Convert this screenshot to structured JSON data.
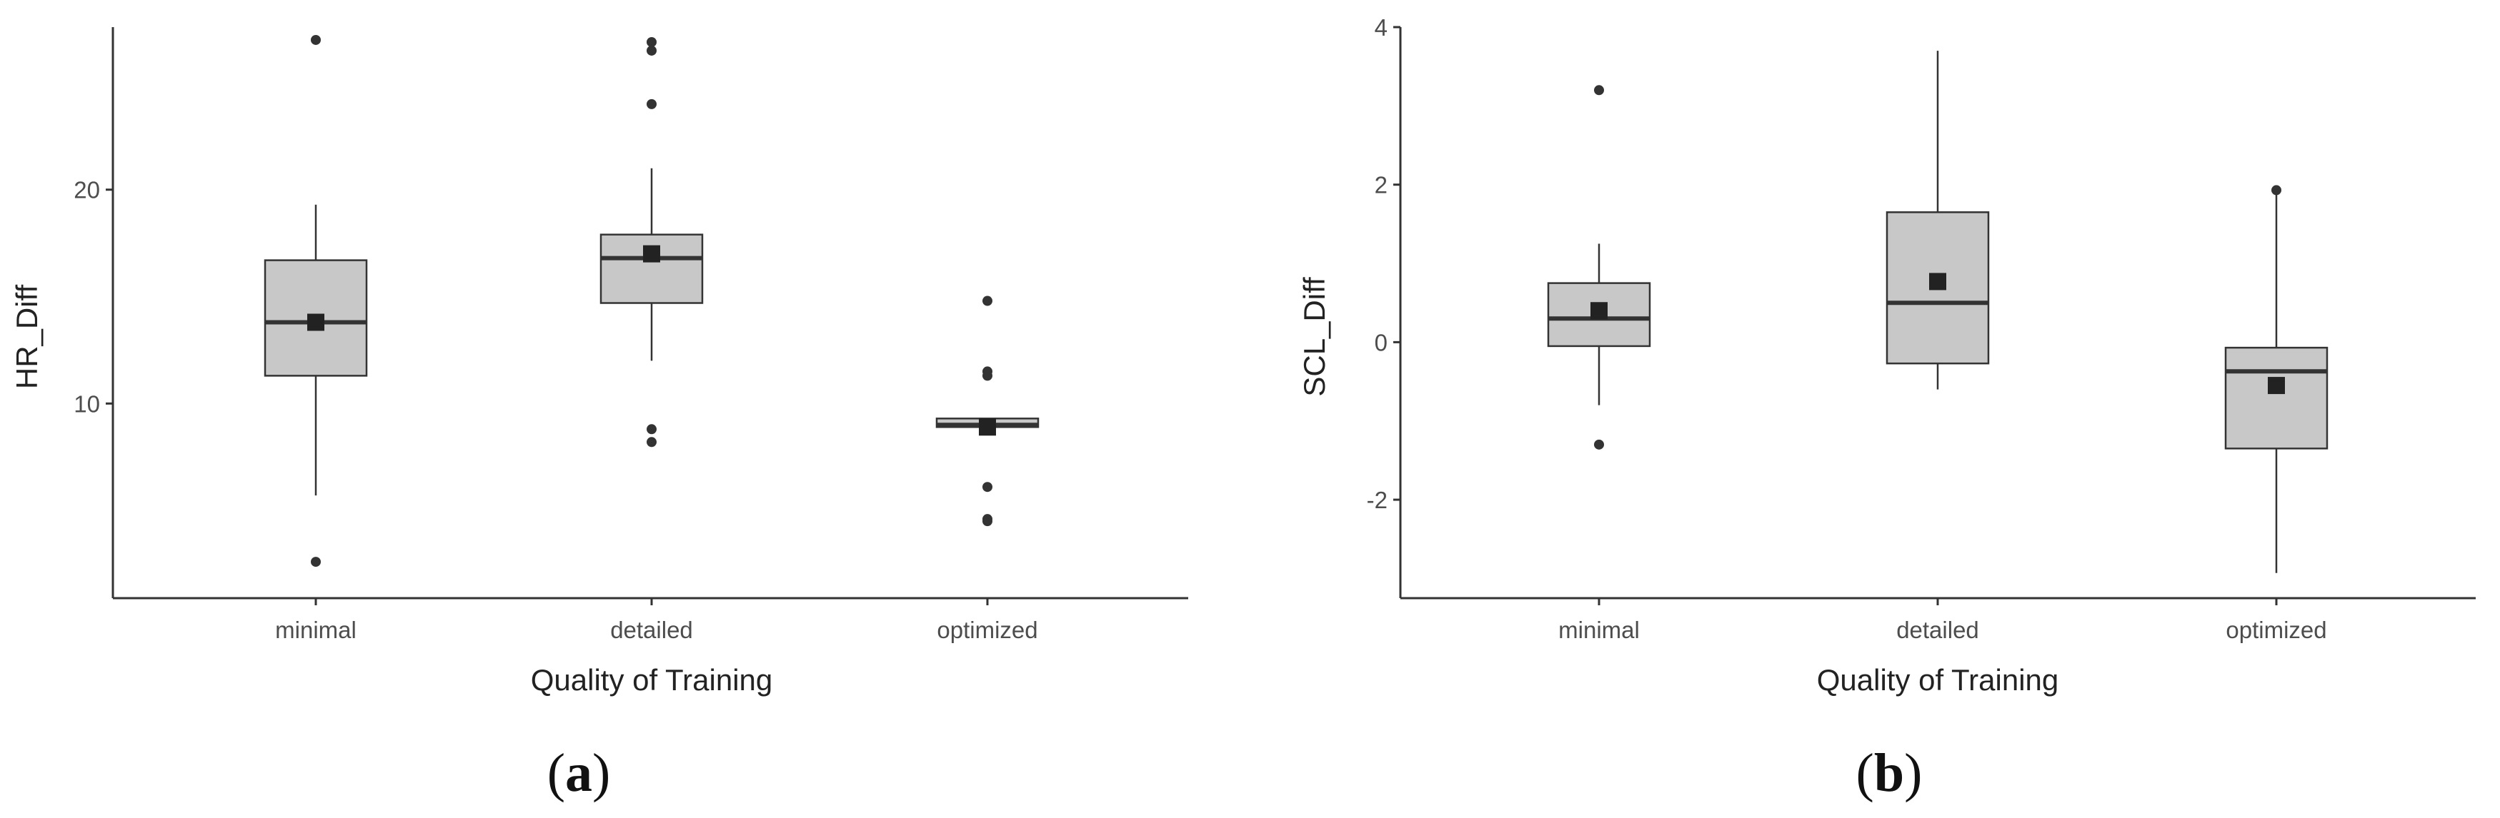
{
  "colors": {
    "box_fill": "#c8c8c8",
    "box_stroke": "#333333",
    "median": "#333333",
    "mean_marker": "#222222",
    "outlier": "#333333",
    "axis": "#333333"
  },
  "chart_data": [
    {
      "type": "boxplot",
      "panel_label": "a",
      "xlabel": "Quality of Training",
      "ylabel": "HR_Diff",
      "categories": [
        "minimal",
        "detailed",
        "optimized"
      ],
      "ylim": [
        0.9,
        27.6
      ],
      "yticks": [
        10,
        20
      ],
      "grid": false,
      "boxes": [
        {
          "category": "minimal",
          "whisker_low": 5.7,
          "q1": 11.3,
          "median": 13.8,
          "q3": 16.7,
          "whisker_high": 19.3,
          "mean": 13.8,
          "outliers": [
            2.6,
            27.0
          ]
        },
        {
          "category": "detailed",
          "whisker_low": 12.0,
          "q1": 14.7,
          "median": 16.8,
          "q3": 17.9,
          "whisker_high": 21.0,
          "mean": 17.0,
          "outliers": [
            8.2,
            8.8,
            24.0,
            26.5,
            26.9
          ]
        },
        {
          "category": "optimized",
          "whisker_low": 8.9,
          "q1": 8.9,
          "median": 9.0,
          "q3": 9.3,
          "whisker_high": 9.3,
          "mean": 8.9,
          "outliers": [
            4.5,
            4.6,
            6.1,
            11.3,
            11.5,
            14.8
          ]
        }
      ]
    },
    {
      "type": "boxplot",
      "panel_label": "b",
      "xlabel": "Quality of Training",
      "ylabel": "SCL_Diff",
      "categories": [
        "minimal",
        "detailed",
        "optimized"
      ],
      "ylim": [
        -3.25,
        4.0
      ],
      "yticks": [
        -2,
        0,
        2,
        4
      ],
      "grid": false,
      "boxes": [
        {
          "category": "minimal",
          "whisker_low": -0.8,
          "q1": -0.05,
          "median": 0.3,
          "q3": 0.75,
          "whisker_high": 1.25,
          "mean": 0.4,
          "outliers": [
            -1.3,
            3.2
          ]
        },
        {
          "category": "detailed",
          "whisker_low": -0.6,
          "q1": -0.27,
          "median": 0.5,
          "q3": 1.65,
          "whisker_high": 3.7,
          "mean": 0.77,
          "outliers": []
        },
        {
          "category": "optimized",
          "whisker_low": -2.93,
          "q1": -1.35,
          "median": -0.37,
          "q3": -0.07,
          "whisker_high": 1.9,
          "mean": -0.55,
          "outliers": [
            1.93
          ]
        }
      ]
    }
  ]
}
